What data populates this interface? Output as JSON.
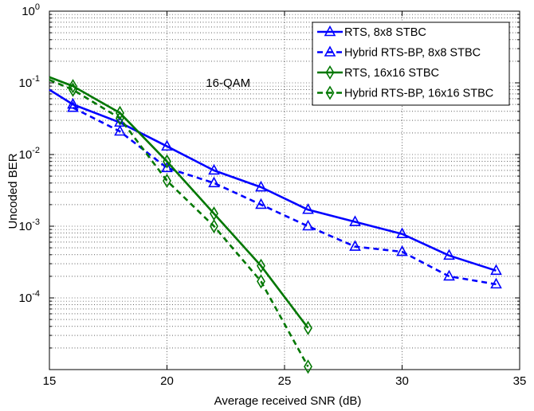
{
  "chart_data": {
    "type": "line",
    "xlabel": "Average received SNR (dB)",
    "ylabel": "Uncoded BER",
    "xlim": [
      15,
      35
    ],
    "ylim": [
      1e-05,
      1
    ],
    "yscale": "log",
    "grid": true,
    "legend_position": "top-right",
    "x_ticks": [
      "15",
      "20",
      "25",
      "30",
      "35"
    ],
    "y_ticks": [
      {
        "base": "10",
        "exp": "0"
      },
      {
        "base": "10",
        "exp": "-1"
      },
      {
        "base": "10",
        "exp": "-2"
      },
      {
        "base": "10",
        "exp": "-3"
      },
      {
        "base": "10",
        "exp": "-4"
      }
    ],
    "annotations": [
      {
        "text": "16-QAM",
        "x": 22.6,
        "y": 0.1
      }
    ],
    "series": [
      {
        "name": "RTS, 8x8 STBC",
        "color": "#0000ff",
        "dash": "solid",
        "marker": "triangle",
        "x": [
          15,
          16,
          18,
          20,
          22,
          24,
          26,
          28,
          30,
          32,
          34
        ],
        "y": [
          0.08,
          0.05,
          0.028,
          0.013,
          0.006,
          0.0035,
          0.0017,
          0.00115,
          0.00078,
          0.00039,
          0.00024
        ]
      },
      {
        "name": "Hybrid RTS-BP, 8x8 STBC",
        "color": "#0000ff",
        "dash": "dashed",
        "marker": "triangle",
        "x": [
          16,
          18,
          20,
          22,
          24,
          26,
          28,
          30,
          32,
          34
        ],
        "y": [
          0.045,
          0.021,
          0.0065,
          0.004,
          0.002,
          0.001,
          0.00052,
          0.00044,
          0.0002,
          0.000155
        ]
      },
      {
        "name": "RTS, 16x16 STBC",
        "color": "#007700",
        "dash": "solid",
        "marker": "diamond",
        "x": [
          15,
          16,
          18,
          20,
          22,
          24,
          26
        ],
        "y": [
          0.12,
          0.09,
          0.038,
          0.008,
          0.0015,
          0.00028,
          3.8e-05
        ]
      },
      {
        "name": "Hybrid RTS-BP, 16x16 STBC",
        "color": "#007700",
        "dash": "dashed",
        "marker": "diamond",
        "x": [
          15,
          16,
          18,
          20,
          22,
          24,
          26
        ],
        "y": [
          0.11,
          0.08,
          0.032,
          0.0043,
          0.001,
          0.00017,
          1.1e-05
        ]
      }
    ]
  }
}
